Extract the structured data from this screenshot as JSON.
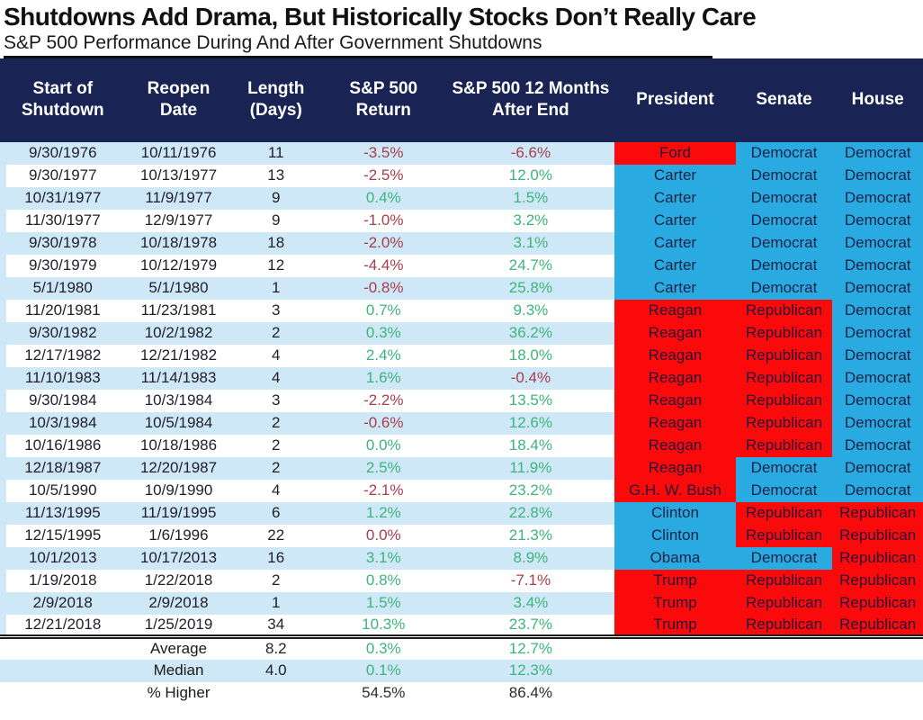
{
  "title": "Shutdowns Add Drama, But Historically Stocks Don’t Really Care",
  "subtitle": "S&P 500 Performance During And After Government Shutdowns",
  "colors": {
    "header_bg": "#1a2454",
    "row_stripe": "#cfe8f7",
    "republican_red": "#fa0a0a",
    "democrat_blue": "#29abe2",
    "positive_green": "#3eb47a",
    "negative_red": "#a63d4d"
  },
  "chart_data": {
    "type": "table",
    "title": "Shutdowns Add Drama, But Historically Stocks Don’t Really Care",
    "subtitle": "S&P 500 Performance During And After Government Shutdowns",
    "columns": [
      "Start of Shutdown",
      "Reopen Date",
      "Length (Days)",
      "S&P 500 Return",
      "S&P 500 12 Months After End",
      "President",
      "Senate",
      "House"
    ],
    "rows": [
      {
        "start": "9/30/1976",
        "reopen": "10/11/1976",
        "days": "11",
        "ret": "-3.5%",
        "ret_dir": "down",
        "after": "-6.6%",
        "after_dir": "down",
        "president": "Ford",
        "pres_party": "rep",
        "senate": "Democrat",
        "house": "Democrat"
      },
      {
        "start": "9/30/1977",
        "reopen": "10/13/1977",
        "days": "13",
        "ret": "-2.5%",
        "ret_dir": "down",
        "after": "12.0%",
        "after_dir": "up",
        "president": "Carter",
        "pres_party": "dem",
        "senate": "Democrat",
        "house": "Democrat"
      },
      {
        "start": "10/31/1977",
        "reopen": "11/9/1977",
        "days": "9",
        "ret": "0.4%",
        "ret_dir": "up",
        "after": "1.5%",
        "after_dir": "up",
        "president": "Carter",
        "pres_party": "dem",
        "senate": "Democrat",
        "house": "Democrat"
      },
      {
        "start": "11/30/1977",
        "reopen": "12/9/1977",
        "days": "9",
        "ret": "-1.0%",
        "ret_dir": "down",
        "after": "3.2%",
        "after_dir": "up",
        "president": "Carter",
        "pres_party": "dem",
        "senate": "Democrat",
        "house": "Democrat"
      },
      {
        "start": "9/30/1978",
        "reopen": "10/18/1978",
        "days": "18",
        "ret": "-2.0%",
        "ret_dir": "down",
        "after": "3.1%",
        "after_dir": "up",
        "president": "Carter",
        "pres_party": "dem",
        "senate": "Democrat",
        "house": "Democrat"
      },
      {
        "start": "9/30/1979",
        "reopen": "10/12/1979",
        "days": "12",
        "ret": "-4.4%",
        "ret_dir": "down",
        "after": "24.7%",
        "after_dir": "up",
        "president": "Carter",
        "pres_party": "dem",
        "senate": "Democrat",
        "house": "Democrat"
      },
      {
        "start": "5/1/1980",
        "reopen": "5/1/1980",
        "days": "1",
        "ret": "-0.8%",
        "ret_dir": "down",
        "after": "25.8%",
        "after_dir": "up",
        "president": "Carter",
        "pres_party": "dem",
        "senate": "Democrat",
        "house": "Democrat"
      },
      {
        "start": "11/20/1981",
        "reopen": "11/23/1981",
        "days": "3",
        "ret": "0.7%",
        "ret_dir": "up",
        "after": "9.3%",
        "after_dir": "up",
        "president": "Reagan",
        "pres_party": "rep",
        "senate": "Republican",
        "house": "Democrat"
      },
      {
        "start": "9/30/1982",
        "reopen": "10/2/1982",
        "days": "2",
        "ret": "0.3%",
        "ret_dir": "up",
        "after": "36.2%",
        "after_dir": "up",
        "president": "Reagan",
        "pres_party": "rep",
        "senate": "Republican",
        "house": "Democrat"
      },
      {
        "start": "12/17/1982",
        "reopen": "12/21/1982",
        "days": "4",
        "ret": "2.4%",
        "ret_dir": "up",
        "after": "18.0%",
        "after_dir": "up",
        "president": "Reagan",
        "pres_party": "rep",
        "senate": "Republican",
        "house": "Democrat"
      },
      {
        "start": "11/10/1983",
        "reopen": "11/14/1983",
        "days": "4",
        "ret": "1.6%",
        "ret_dir": "up",
        "after": "-0.4%",
        "after_dir": "down",
        "president": "Reagan",
        "pres_party": "rep",
        "senate": "Republican",
        "house": "Democrat"
      },
      {
        "start": "9/30/1984",
        "reopen": "10/3/1984",
        "days": "3",
        "ret": "-2.2%",
        "ret_dir": "down",
        "after": "13.5%",
        "after_dir": "up",
        "president": "Reagan",
        "pres_party": "rep",
        "senate": "Republican",
        "house": "Democrat"
      },
      {
        "start": "10/3/1984",
        "reopen": "10/5/1984",
        "days": "2",
        "ret": "-0.6%",
        "ret_dir": "down",
        "after": "12.6%",
        "after_dir": "up",
        "president": "Reagan",
        "pres_party": "rep",
        "senate": "Republican",
        "house": "Democrat"
      },
      {
        "start": "10/16/1986",
        "reopen": "10/18/1986",
        "days": "2",
        "ret": "0.0%",
        "ret_dir": "up",
        "after": "18.4%",
        "after_dir": "up",
        "president": "Reagan",
        "pres_party": "rep",
        "senate": "Republican",
        "house": "Democrat"
      },
      {
        "start": "12/18/1987",
        "reopen": "12/20/1987",
        "days": "2",
        "ret": "2.5%",
        "ret_dir": "up",
        "after": "11.9%",
        "after_dir": "up",
        "president": "Reagan",
        "pres_party": "rep",
        "senate": "Democrat",
        "house": "Democrat"
      },
      {
        "start": "10/5/1990",
        "reopen": "10/9/1990",
        "days": "4",
        "ret": "-2.1%",
        "ret_dir": "down",
        "after": "23.2%",
        "after_dir": "up",
        "president": "G.H. W. Bush",
        "pres_party": "rep",
        "senate": "Democrat",
        "house": "Democrat"
      },
      {
        "start": "11/13/1995",
        "reopen": "11/19/1995",
        "days": "6",
        "ret": "1.2%",
        "ret_dir": "up",
        "after": "22.8%",
        "after_dir": "up",
        "president": "Clinton",
        "pres_party": "dem",
        "senate": "Republican",
        "house": "Republican"
      },
      {
        "start": "12/15/1995",
        "reopen": "1/6/1996",
        "days": "22",
        "ret": "0.0%",
        "ret_dir": "down",
        "after": "21.3%",
        "after_dir": "up",
        "president": "Clinton",
        "pres_party": "dem",
        "senate": "Republican",
        "house": "Republican"
      },
      {
        "start": "10/1/2013",
        "reopen": "10/17/2013",
        "days": "16",
        "ret": "3.1%",
        "ret_dir": "up",
        "after": "8.9%",
        "after_dir": "up",
        "president": "Obama",
        "pres_party": "dem",
        "senate": "Democrat",
        "house": "Republican"
      },
      {
        "start": "1/19/2018",
        "reopen": "1/22/2018",
        "days": "2",
        "ret": "0.8%",
        "ret_dir": "up",
        "after": "-7.1%",
        "after_dir": "down",
        "president": "Trump",
        "pres_party": "rep",
        "senate": "Republican",
        "house": "Republican"
      },
      {
        "start": "2/9/2018",
        "reopen": "2/9/2018",
        "days": "1",
        "ret": "1.5%",
        "ret_dir": "up",
        "after": "3.4%",
        "after_dir": "up",
        "president": "Trump",
        "pres_party": "rep",
        "senate": "Republican",
        "house": "Republican"
      },
      {
        "start": "12/21/2018",
        "reopen": "1/25/2019",
        "days": "34",
        "ret": "10.3%",
        "ret_dir": "up",
        "after": "23.7%",
        "after_dir": "up",
        "president": "Trump",
        "pres_party": "rep",
        "senate": "Republican",
        "house": "Republican"
      }
    ],
    "summary": [
      {
        "label": "Average",
        "days": "8.2",
        "ret": "0.3%",
        "ret_dir": "up",
        "after": "12.7%",
        "after_dir": "up"
      },
      {
        "label": "Median",
        "days": "4.0",
        "ret": "0.1%",
        "ret_dir": "up",
        "after": "12.3%",
        "after_dir": "up"
      },
      {
        "label": "% Higher",
        "days": "",
        "ret": "54.5%",
        "ret_dir": "plain",
        "after": "86.4%",
        "after_dir": "plain"
      }
    ]
  }
}
